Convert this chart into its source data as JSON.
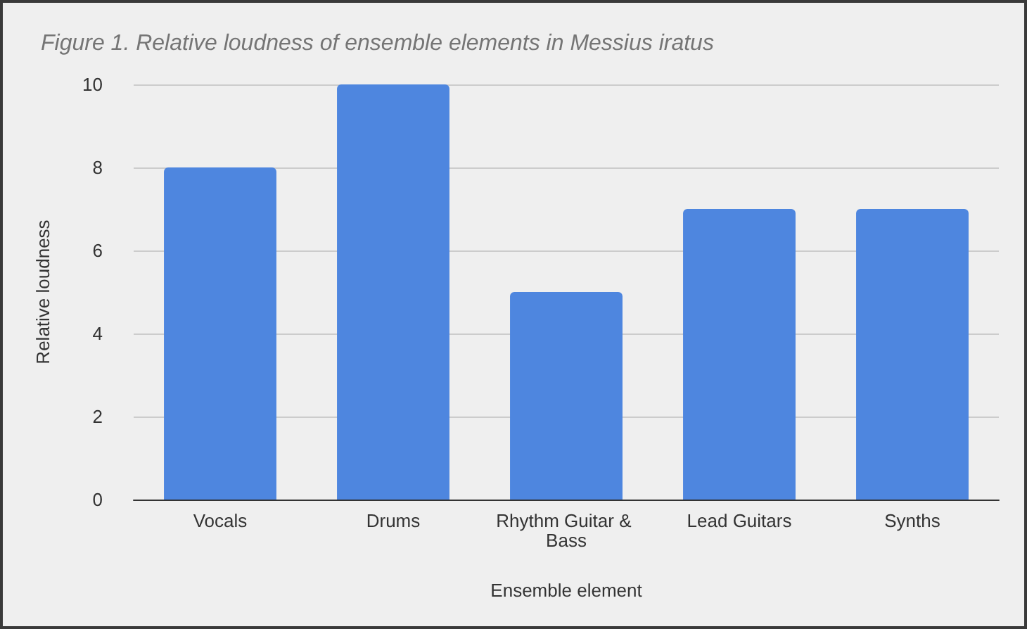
{
  "chart_data": {
    "type": "bar",
    "title": "Figure 1. Relative loudness of ensemble elements in Messius iratus",
    "xlabel": "Ensemble element",
    "ylabel": "Relative loudness",
    "categories": [
      "Vocals",
      "Drums",
      "Rhythm Guitar & Bass",
      "Lead Guitars",
      "Synths"
    ],
    "values": [
      8,
      10,
      5,
      7,
      7
    ],
    "color": "#4e86df",
    "ylim": [
      0,
      10
    ],
    "yticks": [
      0,
      2,
      4,
      6,
      8,
      10
    ],
    "grid": "y"
  }
}
